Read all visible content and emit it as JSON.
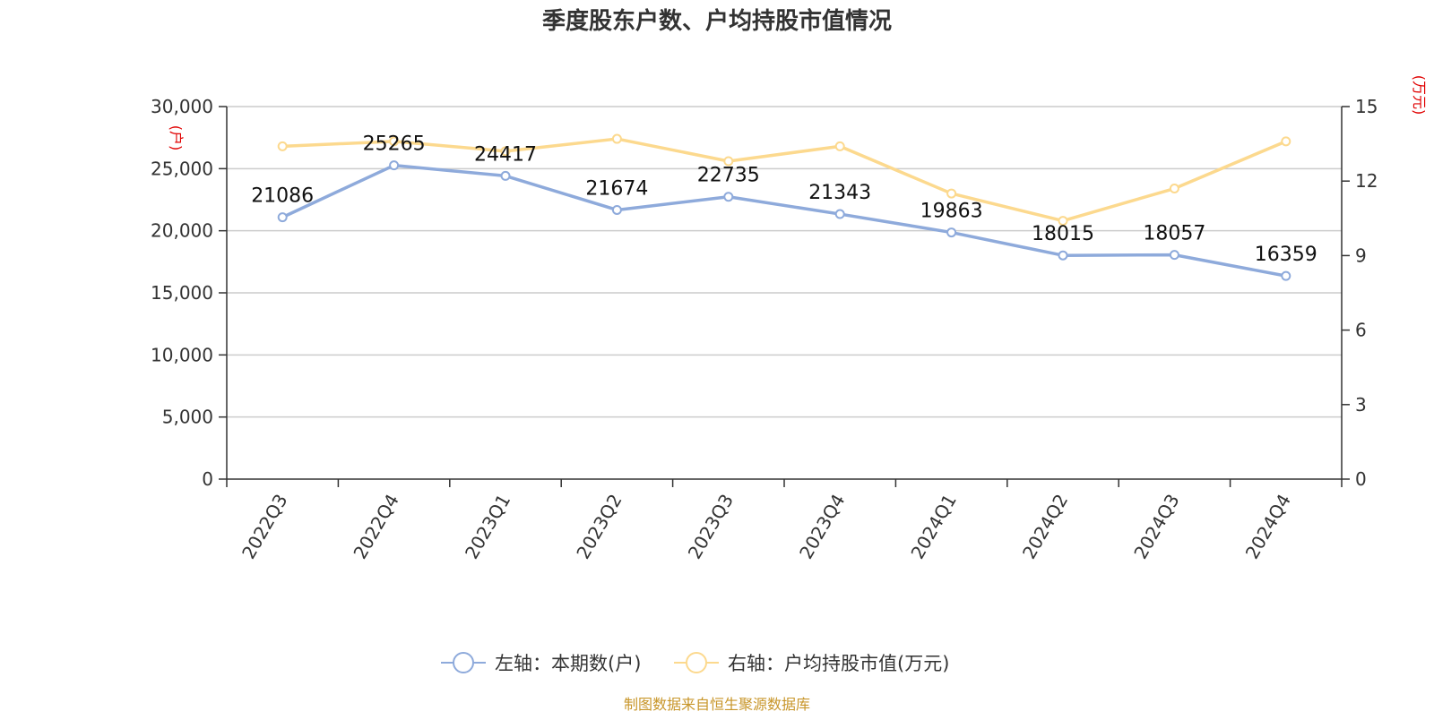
{
  "chart_data": {
    "type": "line",
    "title": "季度股东户数、户均持股市值情况",
    "categories": [
      "2022Q3",
      "2022Q4",
      "2023Q1",
      "2023Q2",
      "2023Q3",
      "2023Q4",
      "2024Q1",
      "2024Q2",
      "2024Q3",
      "2024Q4"
    ],
    "left_axis": {
      "unit": "(户)",
      "range": [
        0,
        30000
      ],
      "ticks": [
        "0",
        "5,000",
        "10,000",
        "15,000",
        "20,000",
        "25,000",
        "30,000"
      ],
      "tick_values": [
        0,
        5000,
        10000,
        15000,
        20000,
        25000,
        30000
      ]
    },
    "right_axis": {
      "unit": "(万元)",
      "range": [
        0,
        15
      ],
      "ticks": [
        "0",
        "3",
        "6",
        "9",
        "12",
        "15"
      ],
      "tick_values": [
        0,
        3,
        6,
        9,
        12,
        15
      ]
    },
    "series": [
      {
        "name": "左轴：本期数(户)",
        "axis": "left",
        "color": "#8eaadb",
        "values": [
          21086,
          25265,
          24417,
          21674,
          22735,
          21343,
          19863,
          18015,
          18057,
          16359
        ],
        "labels": [
          "21086",
          "25265",
          "24417",
          "21674",
          "22735",
          "21343",
          "19863",
          "18015",
          "18057",
          "16359"
        ]
      },
      {
        "name": "右轴：户均持股市值(万元)",
        "axis": "right",
        "color": "#fcd98e",
        "values": [
          13.4,
          13.6,
          13.2,
          13.7,
          12.8,
          13.4,
          11.5,
          10.4,
          11.7,
          13.6
        ]
      }
    ],
    "grid": true,
    "legend_position": "bottom-center"
  },
  "source": "制图数据来自恒生聚源数据库"
}
